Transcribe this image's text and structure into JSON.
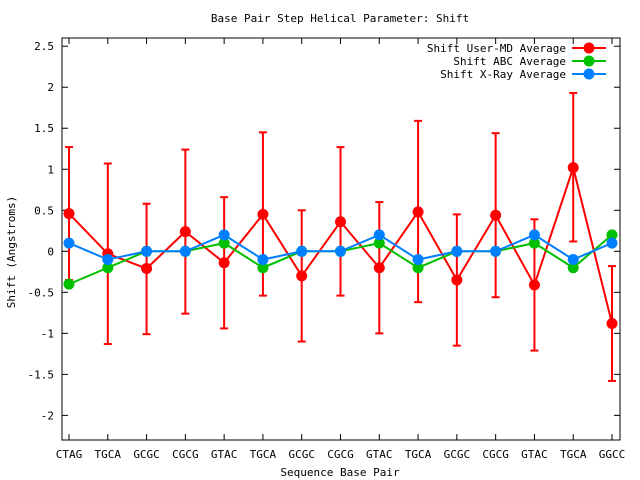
{
  "chart_data": {
    "type": "line",
    "title": "Base Pair Step Helical Parameter: Shift",
    "xlabel": "Sequence Base Pair",
    "ylabel": "Shift (Angstroms)",
    "categories": [
      "CTAG",
      "TGCA",
      "GCGC",
      "CGCG",
      "GTAC",
      "TGCA",
      "GCGC",
      "CGCG",
      "GTAC",
      "TGCA",
      "GCGC",
      "CGCG",
      "GTAC",
      "TGCA",
      "GGCC"
    ],
    "ylim": [
      -2.3,
      2.6
    ],
    "yticks": [
      -2,
      -1.5,
      -1,
      -0.5,
      0,
      0.5,
      1,
      1.5,
      2,
      2.5
    ],
    "ytick_labels": [
      "-2",
      "-1.5",
      "-1",
      "-0.5",
      "0",
      "0.5",
      "1",
      "1.5",
      "2",
      "2.5"
    ],
    "grid": false,
    "legend_position": "top-right",
    "series": [
      {
        "name": "Shift User-MD Average",
        "color": "#ff0000",
        "values": [
          0.46,
          -0.03,
          -0.21,
          0.24,
          -0.14,
          0.45,
          -0.3,
          0.36,
          -0.2,
          0.48,
          -0.35,
          0.44,
          -0.41,
          1.02,
          -0.88
        ],
        "error_low": [
          -0.35,
          -1.13,
          -1.01,
          -0.76,
          -0.94,
          -0.54,
          -1.1,
          -0.54,
          -1.0,
          -0.62,
          -1.15,
          -0.56,
          -1.21,
          0.12,
          -1.58
        ],
        "error_high": [
          1.27,
          1.07,
          0.58,
          1.24,
          0.66,
          1.45,
          0.5,
          1.27,
          0.6,
          1.59,
          0.45,
          1.44,
          0.39,
          1.93,
          -0.18
        ]
      },
      {
        "name": "Shift ABC Average",
        "color": "#00c000",
        "values": [
          -0.4,
          -0.2,
          0.0,
          0.0,
          0.1,
          -0.2,
          0.0,
          0.0,
          0.1,
          -0.2,
          0.0,
          0.0,
          0.1,
          -0.2,
          0.2
        ]
      },
      {
        "name": "Shift X-Ray Average",
        "color": "#0080ff",
        "values": [
          0.1,
          -0.1,
          0.0,
          0.0,
          0.2,
          -0.1,
          0.0,
          0.0,
          0.2,
          -0.1,
          0.0,
          0.0,
          0.2,
          -0.1,
          0.1
        ]
      }
    ]
  }
}
